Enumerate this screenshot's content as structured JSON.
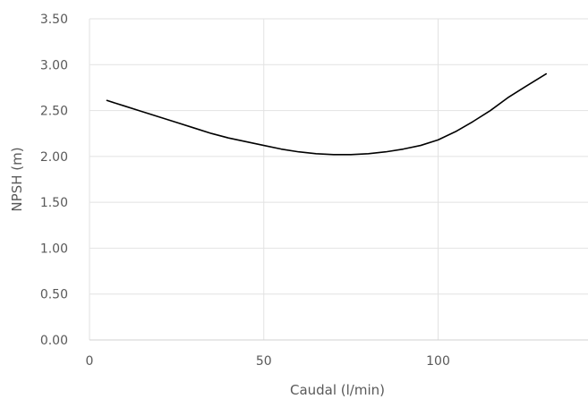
{
  "chart_data": {
    "type": "line",
    "xlabel": "Caudal (l/min)",
    "ylabel": "NPSH (m)",
    "xlim": [
      0,
      143
    ],
    "ylim": [
      0,
      3.5
    ],
    "xticks": [
      0,
      50,
      100
    ],
    "xtick_labels": [
      "0",
      "50",
      "100"
    ],
    "yticks": [
      0,
      0.5,
      1.0,
      1.5,
      2.0,
      2.5,
      3.0,
      3.5
    ],
    "ytick_labels": [
      "0.00",
      "0.50",
      "1.00",
      "1.50",
      "2.00",
      "2.50",
      "3.00",
      "3.50"
    ],
    "grid": true,
    "legend": "none",
    "series": [
      {
        "color": "#000000",
        "x": [
          5,
          10,
          15,
          20,
          25,
          30,
          35,
          40,
          45,
          50,
          55,
          60,
          65,
          70,
          75,
          80,
          85,
          90,
          95,
          100,
          105,
          110,
          115,
          120,
          125,
          131
        ],
        "y": [
          2.61,
          2.55,
          2.49,
          2.43,
          2.37,
          2.31,
          2.25,
          2.2,
          2.16,
          2.12,
          2.08,
          2.05,
          2.03,
          2.02,
          2.02,
          2.03,
          2.05,
          2.08,
          2.12,
          2.18,
          2.27,
          2.38,
          2.5,
          2.64,
          2.76,
          2.9
        ]
      }
    ]
  }
}
